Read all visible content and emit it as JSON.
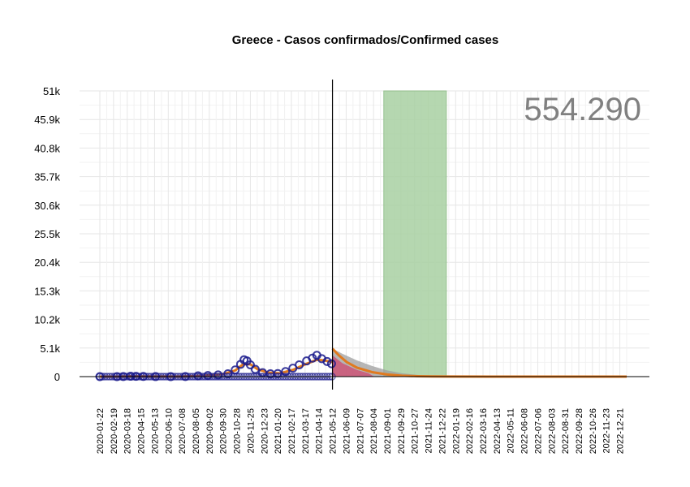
{
  "chart_data": {
    "type": "line",
    "title": "Greece - Casos confirmados/Confirmed cases",
    "total_label": "554.290",
    "y_ticks": [
      0,
      5100,
      10200,
      15300,
      20400,
      25500,
      30600,
      35700,
      40800,
      45900,
      51000
    ],
    "y_tick_labels": [
      "0",
      "5.1k",
      "10.2k",
      "15.3k",
      "20.4k",
      "25.5k",
      "30.6k",
      "35.7k",
      "40.8k",
      "45.9k",
      "51k"
    ],
    "ylim": [
      0,
      51000
    ],
    "x_start": "2020-01-22",
    "x_tick_labels": [
      "2020-01-22",
      "2020-02-19",
      "2020-03-18",
      "2020-04-15",
      "2020-05-13",
      "2020-06-10",
      "2020-07-08",
      "2020-08-05",
      "2020-09-02",
      "2020-09-30",
      "2020-10-28",
      "2020-11-25",
      "2020-12-23",
      "2021-01-20",
      "2021-02-17",
      "2021-03-17",
      "2021-04-14",
      "2021-05-12",
      "2021-06-09",
      "2021-07-07",
      "2021-08-04",
      "2021-09-01",
      "2021-09-29",
      "2021-10-27",
      "2021-11-24",
      "2021-12-22",
      "2022-01-19",
      "2022-02-16",
      "2022-03-16",
      "2022-04-13",
      "2022-05-11",
      "2022-06-08",
      "2022-07-06",
      "2022-08-03",
      "2022-08-31",
      "2022-09-28",
      "2022-10-26",
      "2022-11-23",
      "2022-12-21"
    ],
    "x_end": "2023-01-04",
    "today": "2021-05-12",
    "highlight_range": [
      "2021-08-25",
      "2021-12-31"
    ],
    "highlight_color": "#a9d1a3",
    "observed": {
      "marker_color": "#1a1a8c",
      "points": [
        [
          "2020-01-22",
          0
        ],
        [
          "2020-02-26",
          0
        ],
        [
          "2020-03-10",
          20
        ],
        [
          "2020-03-25",
          80
        ],
        [
          "2020-04-05",
          60
        ],
        [
          "2020-04-20",
          30
        ],
        [
          "2020-05-15",
          10
        ],
        [
          "2020-06-15",
          5
        ],
        [
          "2020-07-15",
          20
        ],
        [
          "2020-08-10",
          150
        ],
        [
          "2020-08-30",
          200
        ],
        [
          "2020-09-20",
          300
        ],
        [
          "2020-10-10",
          500
        ],
        [
          "2020-10-25",
          1200
        ],
        [
          "2020-11-05",
          2200
        ],
        [
          "2020-11-12",
          3000
        ],
        [
          "2020-11-18",
          2800
        ],
        [
          "2020-11-25",
          2100
        ],
        [
          "2020-12-05",
          1300
        ],
        [
          "2020-12-20",
          700
        ],
        [
          "2021-01-05",
          500
        ],
        [
          "2021-01-20",
          550
        ],
        [
          "2021-02-05",
          900
        ],
        [
          "2021-02-20",
          1500
        ],
        [
          "2021-03-05",
          2100
        ],
        [
          "2021-03-20",
          2800
        ],
        [
          "2021-04-01",
          3300
        ],
        [
          "2021-04-10",
          3800
        ],
        [
          "2021-04-20",
          3200
        ],
        [
          "2021-05-01",
          2700
        ],
        [
          "2021-05-10",
          2300
        ]
      ]
    },
    "fitted": {
      "color": "#e07a1f",
      "points": [
        [
          "2020-01-22",
          0
        ],
        [
          "2020-03-01",
          10
        ],
        [
          "2020-03-25",
          70
        ],
        [
          "2020-05-01",
          40
        ],
        [
          "2020-07-01",
          20
        ],
        [
          "2020-08-20",
          150
        ],
        [
          "2020-09-30",
          450
        ],
        [
          "2020-10-25",
          1100
        ],
        [
          "2020-11-10",
          2200
        ],
        [
          "2020-11-25",
          2200
        ],
        [
          "2020-12-10",
          1300
        ],
        [
          "2021-01-01",
          700
        ],
        [
          "2021-01-25",
          600
        ],
        [
          "2021-02-20",
          1200
        ],
        [
          "2021-03-20",
          2300
        ],
        [
          "2021-04-10",
          3000
        ],
        [
          "2021-04-25",
          2900
        ],
        [
          "2021-05-12",
          2600
        ]
      ]
    },
    "forecast": {
      "color": "#e07a1f",
      "upper_color": "#9e9e9e",
      "lower_color": "#d1406a",
      "points": [
        [
          "2021-05-12",
          5000
        ],
        [
          "2021-05-25",
          3800
        ],
        [
          "2021-06-10",
          2600
        ],
        [
          "2021-07-01",
          1600
        ],
        [
          "2021-08-01",
          800
        ],
        [
          "2021-09-01",
          380
        ],
        [
          "2021-10-01",
          170
        ],
        [
          "2021-11-01",
          70
        ],
        [
          "2021-12-01",
          30
        ],
        [
          "2022-01-01",
          10
        ],
        [
          "2022-04-01",
          0
        ],
        [
          "2023-01-04",
          0
        ]
      ],
      "upper": [
        [
          "2021-05-12",
          5000
        ],
        [
          "2021-06-01",
          4100
        ],
        [
          "2021-07-01",
          2900
        ],
        [
          "2021-08-01",
          1900
        ],
        [
          "2021-09-01",
          1100
        ],
        [
          "2021-10-01",
          600
        ],
        [
          "2021-11-01",
          300
        ],
        [
          "2021-12-01",
          140
        ],
        [
          "2022-01-01",
          50
        ],
        [
          "2022-02-01",
          0
        ]
      ],
      "lower": [
        [
          "2021-05-12",
          3800
        ],
        [
          "2021-06-01",
          2400
        ],
        [
          "2021-07-01",
          1200
        ],
        [
          "2021-07-25",
          600
        ],
        [
          "2021-08-05",
          0
        ]
      ]
    }
  }
}
